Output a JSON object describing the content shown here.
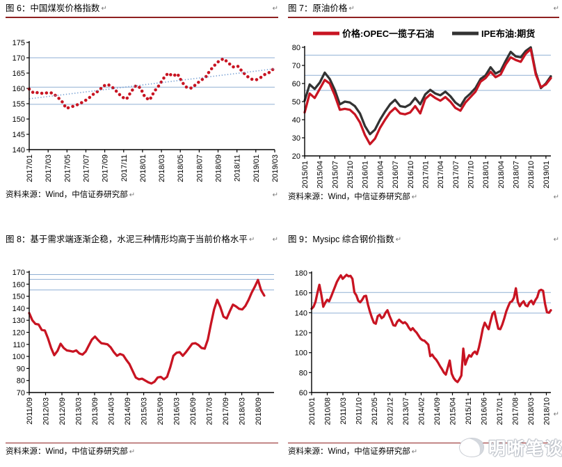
{
  "page": {
    "paragraph_mark": "↵",
    "source_label": "资料来源：Wind，中信证券研究部",
    "watermark_text": "明晰笔谈",
    "colors": {
      "series_red": "#c81422",
      "series_black": "#333333",
      "ref_line_blue": "#8fafd4",
      "trend_blue": "#6f9bd1",
      "rule_dark_red": "#8f2020"
    }
  },
  "chart_data": [
    {
      "type": "line",
      "title": "图 6：中国煤炭价格指数",
      "source": "资料来源：Wind，中信证券研究部",
      "ylim": [
        140,
        175
      ],
      "ystep": 5,
      "ref_lines": [
        170,
        160.4,
        154.8
      ],
      "ref_color": "#8fafd4",
      "label_span": 1.0,
      "data_span": 1.0,
      "x_tick_labels": [
        "2017/01",
        "2017/03",
        "2017/05",
        "2017/07",
        "2017/09",
        "2017/11",
        "2018/01",
        "2018/03",
        "2018/05",
        "2018/07",
        "2018/09",
        "2018/11",
        "2019/01",
        "2019/03"
      ],
      "series": [
        {
          "name": "中国煤炭价格指数",
          "color": "#c81422",
          "style": "dot",
          "values": [
            159.8,
            158.4,
            158.7,
            158.3,
            158.6,
            158.5,
            157.3,
            155.9,
            153.5,
            153.9,
            154.4,
            155.1,
            155.9,
            157.0,
            158.3,
            159.2,
            160.8,
            161.3,
            160.3,
            158.8,
            157.2,
            156.5,
            158.9,
            160.9,
            160.2,
            157.1,
            156.2,
            159.0,
            160.9,
            163.3,
            165.0,
            164.0,
            164.8,
            162.0,
            160.3,
            160.1,
            161.3,
            162.6,
            163.5,
            165.8,
            167.5,
            169.0,
            169.7,
            168.3,
            167.0,
            167.3,
            165.5,
            164.0,
            163.0,
            162.8,
            163.6,
            164.7,
            165.3,
            166.8
          ]
        },
        {
          "name": "趋势线",
          "color": "#6f9bd1",
          "style": "trend",
          "values": [
            156.6,
            166.4
          ]
        }
      ]
    },
    {
      "type": "line",
      "title": "图 7：原油价格",
      "source": "资料来源：Wind，中信证券研究部",
      "legend": true,
      "ylim": [
        20,
        80
      ],
      "ystep": 10,
      "ref_lines": [
        75.7,
        64.5,
        56.2
      ],
      "ref_color": "#8fafd4",
      "label_span": 0.98,
      "data_span": 1.0,
      "x_tick_labels": [
        "2015/01",
        "2015/04",
        "2015/07",
        "2015/10",
        "2016/01",
        "2016/04",
        "2016/07",
        "2016/10",
        "2017/01",
        "2017/04",
        "2017/07",
        "2017/10",
        "2018/01",
        "2018/04",
        "2018/07",
        "2018/10",
        "2019/01"
      ],
      "series": [
        {
          "name": "IPE布油:期货",
          "color": "#333333",
          "style": "line",
          "values": [
            50.5,
            59.5,
            57.0,
            60.5,
            66.0,
            62.5,
            56.5,
            48.5,
            50.0,
            49.5,
            47.5,
            43.5,
            36.5,
            32.0,
            34.5,
            40.0,
            44.5,
            48.5,
            51.0,
            47.5,
            47.0,
            48.5,
            52.0,
            48.5,
            54.0,
            56.5,
            54.5,
            53.5,
            55.5,
            53.0,
            49.5,
            47.5,
            52.0,
            54.5,
            57.5,
            62.5,
            64.5,
            69.0,
            65.5,
            67.0,
            72.5,
            77.5,
            75.0,
            74.5,
            78.0,
            80.0,
            66.0,
            57.5,
            60.0,
            64.0
          ]
        },
        {
          "name": "价格:OPEC一揽子石油",
          "color": "#c81422",
          "style": "line",
          "values": [
            44.0,
            54.5,
            52.0,
            57.0,
            62.0,
            60.0,
            53.5,
            45.5,
            46.0,
            45.5,
            43.0,
            38.5,
            31.5,
            26.5,
            29.5,
            35.5,
            40.0,
            44.0,
            46.5,
            43.5,
            43.0,
            44.0,
            47.5,
            43.5,
            51.5,
            54.0,
            52.0,
            50.5,
            52.5,
            50.0,
            46.5,
            45.0,
            49.5,
            52.5,
            55.5,
            61.0,
            63.0,
            66.5,
            63.5,
            65.0,
            70.5,
            74.5,
            73.0,
            72.0,
            76.5,
            79.0,
            65.0,
            58.0,
            59.5,
            63.0
          ]
        }
      ]
    },
    {
      "type": "line",
      "title": "图 8：基于需求端逐渐企稳，水泥三种情形均高于当前价格水平",
      "source": "资料来源：Wind，中信证券研究部",
      "ylim": [
        70,
        170
      ],
      "ystep": 10,
      "ref_lines": [
        168,
        164,
        155.2
      ],
      "ref_color": "#8fafd4",
      "label_span": 0.935,
      "data_span": 0.96,
      "x_tick_labels": [
        "2011/09",
        "2012/03",
        "2012/09",
        "2013/03",
        "2013/09",
        "2014/03",
        "2014/09",
        "2015/03",
        "2015/09",
        "2016/03",
        "2016/09",
        "2017/03",
        "2017/09",
        "2018/03",
        "2018/09"
      ],
      "series": [
        {
          "name": "水泥价格指数",
          "color": "#c81422",
          "style": "line",
          "values": [
            136,
            130,
            127,
            126.5,
            122,
            121.5,
            115,
            107,
            101,
            104.5,
            110.5,
            107,
            105,
            104.5,
            104,
            105,
            102.5,
            101.5,
            104,
            109,
            114,
            116.5,
            113.5,
            111,
            110.5,
            110,
            107.5,
            103.5,
            100.5,
            102,
            101,
            97,
            93.5,
            88,
            82.5,
            81,
            81.5,
            80,
            78.5,
            77.5,
            79,
            82.5,
            83,
            81,
            83,
            91,
            100.5,
            103,
            103.5,
            100.5,
            103.5,
            107,
            110.5,
            111,
            109.5,
            107,
            106.5,
            114,
            127,
            139,
            147,
            141,
            133,
            131.5,
            137.5,
            143,
            141.5,
            139.5,
            139,
            142,
            147,
            153,
            158,
            163.5,
            155,
            150.5
          ]
        }
      ]
    },
    {
      "type": "line",
      "title": "图 9：Mysipc 综合钢价指数",
      "source": "资料来源：Wind，中信证券研究部",
      "ylim": [
        60,
        180
      ],
      "ystep": 20,
      "ref_lines": [
        160.3,
        150,
        139.6
      ],
      "ref_color": "#8fafd4",
      "label_span": 0.981,
      "data_span": 1.0,
      "x_tick_labels": [
        "2010/01",
        "2010/08",
        "2011/03",
        "2011/10",
        "2012/05",
        "2012/12",
        "2013/07",
        "2014/02",
        "2014/09",
        "2015/04",
        "2015/11",
        "2016/06",
        "2017/01",
        "2017/08",
        "2018/03",
        "2018/10"
      ],
      "series": [
        {
          "name": "Mysipc综合钢价指数",
          "color": "#c81422",
          "style": "line",
          "values": [
            144,
            146,
            151,
            160,
            168,
            158,
            146,
            150,
            153,
            151.5,
            156,
            161,
            166,
            171,
            174.5,
            177.5,
            174,
            176,
            178,
            176.5,
            177,
            174,
            160.5,
            157.5,
            152,
            150.5,
            153,
            156.5,
            157,
            148,
            141,
            135,
            130,
            129,
            136.5,
            138,
            134.5,
            136,
            140,
            142.5,
            137,
            132.5,
            127.5,
            127,
            131,
            133,
            131,
            129.5,
            130.5,
            128.5,
            125,
            122.5,
            124.5,
            122,
            120,
            117,
            114,
            112.5,
            112,
            110,
            108,
            96.5,
            98,
            95,
            93,
            90,
            86.5,
            83.5,
            80,
            78,
            85,
            92,
            79,
            74.5,
            72,
            70.5,
            73.5,
            77,
            104,
            88,
            93.5,
            97.5,
            96,
            99.5,
            101,
            98.5,
            105,
            114,
            124,
            130,
            126.5,
            123.5,
            131.5,
            139,
            141,
            132,
            124,
            123.5,
            128,
            134,
            141,
            146,
            150.5,
            151.5,
            155,
            164.5,
            151,
            146.5,
            149.5,
            151.5,
            147.5,
            146.5,
            150.5,
            152,
            148.5,
            152.5,
            155.5,
            162,
            163,
            162,
            149,
            140.5,
            140,
            142.5
          ]
        }
      ]
    }
  ]
}
